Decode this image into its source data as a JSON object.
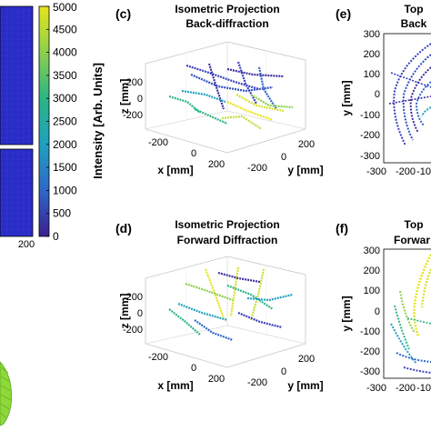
{
  "colormap": {
    "colors": [
      "#3a1f8f",
      "#2f67c8",
      "#1fa0c0",
      "#2bb585",
      "#8ccf4e",
      "#e6e41c"
    ],
    "label": "Intensity [Arb. Units]",
    "ticks": [
      "5000",
      "4500",
      "4000",
      "3500",
      "3000",
      "2500",
      "2000",
      "1500",
      "1000",
      "500",
      "0"
    ]
  },
  "image_panel": {
    "fill_color": "#2b2dc8",
    "xtick": "200"
  },
  "panels": {
    "c": {
      "letter": "(c)",
      "title1": "Isometric Projection",
      "title2": "Back-diffraction"
    },
    "d": {
      "letter": "(d)",
      "title1": "Isometric Projection",
      "title2": "Forward Diffraction"
    },
    "e": {
      "letter": "(e)",
      "title1": "Top",
      "title2": "Back"
    },
    "f": {
      "letter": "(f)",
      "title1": "Top",
      "title2": "Forwar"
    }
  },
  "iso_axes": {
    "z_label": "z [mm]",
    "x_label": "x [mm]",
    "y_label": "y [mm]",
    "z_ticks": [
      "200",
      "0",
      "-200"
    ],
    "x_ticks": [
      "-200",
      "0",
      "200"
    ],
    "y_ticks": [
      "-200",
      "0",
      "200"
    ]
  },
  "top_axes": {
    "y_label": "y [mm]",
    "y_ticks": [
      "300",
      "200",
      "100",
      "0",
      "-100",
      "-200",
      "-300"
    ],
    "x_ticks": [
      "-300",
      "-200",
      "-10"
    ]
  },
  "chart_data": [
    {
      "type": "heatmap",
      "panel": "intensity colorbar",
      "ylabel": "Intensity [Arb. Units]",
      "ylim": [
        0,
        5000
      ],
      "ticks": [
        0,
        500,
        1000,
        1500,
        2000,
        2500,
        3000,
        3500,
        4000,
        4500,
        5000
      ]
    },
    {
      "type": "scatter",
      "panel": "(c)",
      "title": "Isometric Projection Back-diffraction",
      "xlabel": "x [mm]",
      "ylabel": "y [mm]",
      "zlabel": "z [mm]",
      "xlim": [
        -200,
        200
      ],
      "ylim": [
        -200,
        200
      ],
      "zlim": [
        -200,
        200
      ],
      "grid": true
    },
    {
      "type": "scatter",
      "panel": "(d)",
      "title": "Isometric Projection Forward Diffraction",
      "xlabel": "x [mm]",
      "ylabel": "y [mm]",
      "zlabel": "z [mm]",
      "xlim": [
        -200,
        200
      ],
      "ylim": [
        -200,
        200
      ],
      "zlim": [
        -200,
        200
      ],
      "grid": true
    },
    {
      "type": "scatter",
      "panel": "(e)",
      "title": "Top Back",
      "ylabel": "y [mm]",
      "ylim": [
        -300,
        300
      ]
    },
    {
      "type": "scatter",
      "panel": "(f)",
      "title": "Top Forwar",
      "ylabel": "y [mm]",
      "ylim": [
        -300,
        300
      ]
    }
  ]
}
